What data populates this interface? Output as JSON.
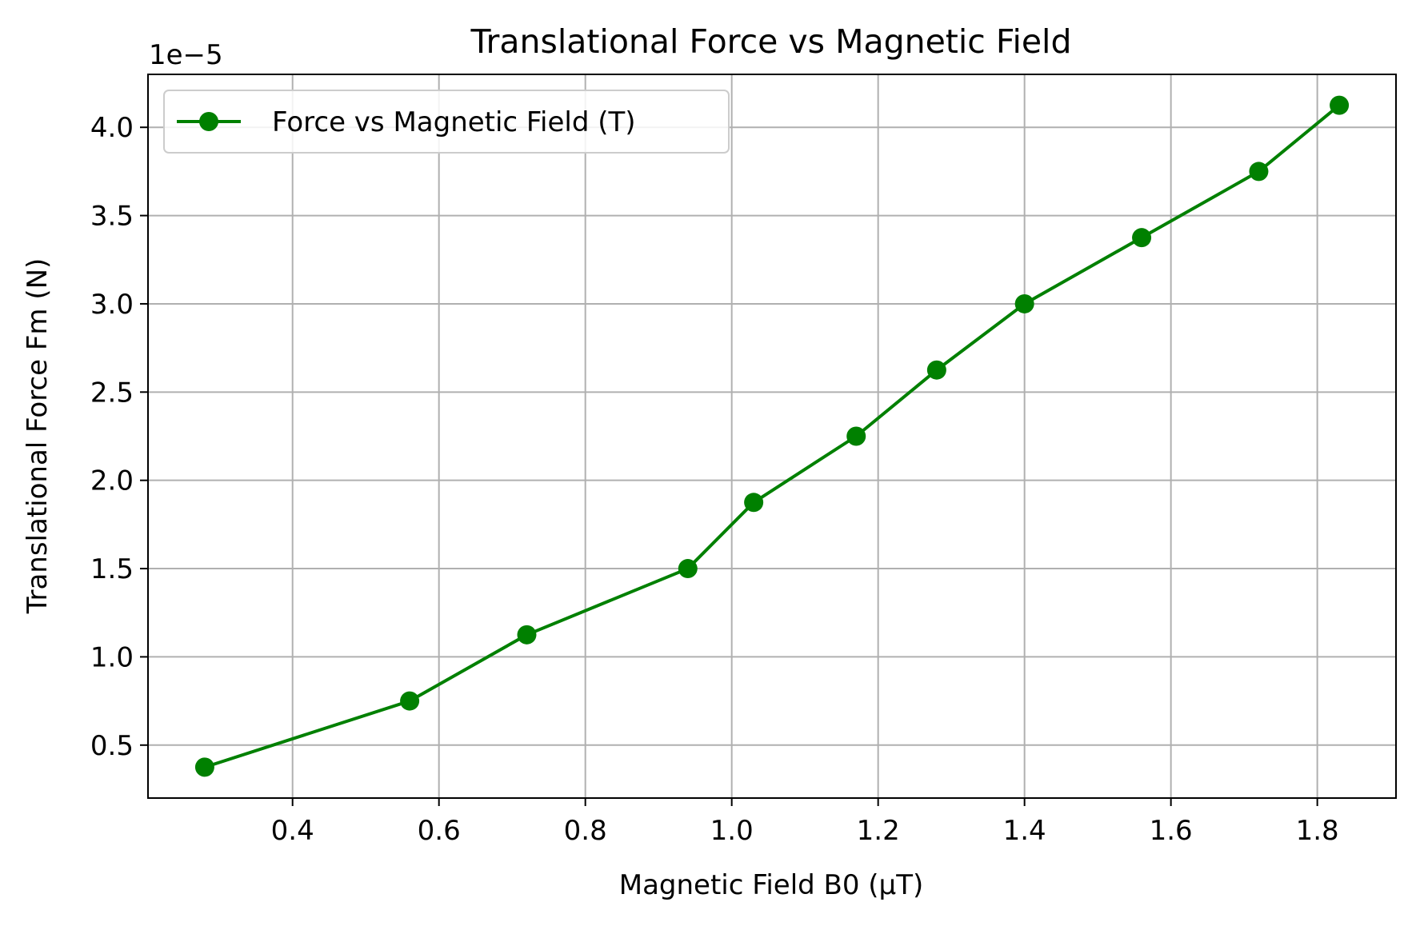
{
  "chart_data": {
    "type": "line",
    "title": "Translational Force vs Magnetic Field",
    "xlabel": "Magnetic Field B0 (μT)",
    "ylabel": "Translational Force Fm (N)",
    "y_offset_label": "1e−5",
    "xlim": [
      0.2025,
      1.9075
    ],
    "ylim": [
      0.2,
      4.3
    ],
    "y_scale_exponent": -5,
    "grid": true,
    "legend_position": "upper-left",
    "x_ticks": [
      0.4,
      0.6,
      0.8,
      1.0,
      1.2,
      1.4,
      1.6,
      1.8
    ],
    "x_tick_labels": [
      "0.4",
      "0.6",
      "0.8",
      "1.0",
      "1.2",
      "1.4",
      "1.6",
      "1.8"
    ],
    "y_ticks": [
      0.5,
      1.0,
      1.5,
      2.0,
      2.5,
      3.0,
      3.5,
      4.0
    ],
    "y_tick_labels": [
      "0.5",
      "1.0",
      "1.5",
      "2.0",
      "2.5",
      "3.0",
      "3.5",
      "4.0"
    ],
    "series": [
      {
        "name": "Force vs Magnetic Field (T)",
        "color": "#008000",
        "marker": "circle",
        "x": [
          0.28,
          0.56,
          0.72,
          0.94,
          1.03,
          1.17,
          1.28,
          1.4,
          1.56,
          1.72,
          1.83
        ],
        "y": [
          0.375,
          0.75,
          1.125,
          1.5,
          1.875,
          2.25,
          2.625,
          3.0,
          3.375,
          3.75,
          4.125
        ]
      }
    ]
  }
}
